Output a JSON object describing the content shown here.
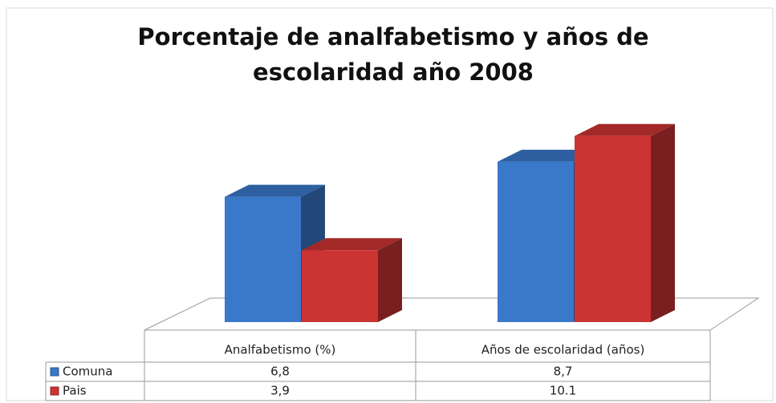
{
  "chart_data": {
    "type": "bar3d",
    "title": [
      "Porcentaje de analfabetismo y años de",
      "escolaridad año 2008"
    ],
    "categories": [
      "Analfabetismo (%)",
      "Años de escolaridad (años)"
    ],
    "series": [
      {
        "name": "Comuna",
        "color": "#3a78c9",
        "values": [
          6.8,
          8.7
        ],
        "value_labels": [
          "6,8",
          "8,7"
        ]
      },
      {
        "name": "Pais",
        "color": "#cc3333",
        "values": [
          3.9,
          10.1
        ],
        "value_labels": [
          "3,9",
          "10.1"
        ]
      }
    ]
  }
}
